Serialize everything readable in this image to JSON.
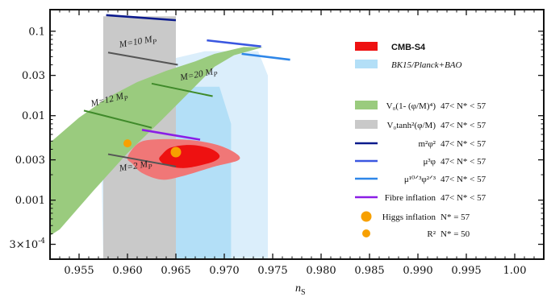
{
  "chart_data": {
    "type": "scatter",
    "xlabel": "n",
    "xlabel_sub": "S",
    "x_ticks": [
      "0.955",
      "0.960",
      "0.965",
      "0.970",
      "0.975",
      "0.980",
      "0.985",
      "0.990",
      "0.995",
      "1.00"
    ],
    "x_tick_values": [
      0.955,
      0.96,
      0.965,
      0.97,
      0.975,
      0.98,
      0.985,
      0.99,
      0.995,
      1.0
    ],
    "xlim": [
      0.952,
      1.003
    ],
    "y_scale": "log",
    "ylim": [
      0.0002,
      0.18
    ],
    "y_ticks": [
      {
        "value": 0.1,
        "label": "0.1"
      },
      {
        "value": 0.03,
        "label": "0.03"
      },
      {
        "value": 0.01,
        "label": "0.01"
      },
      {
        "value": 0.003,
        "label": "0.003"
      },
      {
        "value": 0.001,
        "label": "0.001"
      },
      {
        "value": 0.0003,
        "label": "3×10",
        "exp": "-4"
      }
    ],
    "regions": [
      {
        "name": "BK15/Planck+BAO",
        "level": "2sigma",
        "color": "#dbeefb",
        "outline": [
          [
            0.9575,
            0.0002
          ],
          [
            0.9573,
            0.003
          ],
          [
            0.958,
            0.015
          ],
          [
            0.962,
            0.04
          ],
          [
            0.968,
            0.058
          ],
          [
            0.9735,
            0.058
          ],
          [
            0.9745,
            0.03
          ],
          [
            0.9745,
            0.0002
          ]
        ]
      },
      {
        "name": "BK15/Planck+BAO",
        "level": "1sigma",
        "color": "#b3dff7",
        "outline": [
          [
            0.9612,
            0.0002
          ],
          [
            0.9608,
            0.003
          ],
          [
            0.962,
            0.012
          ],
          [
            0.9655,
            0.022
          ],
          [
            0.9695,
            0.022
          ],
          [
            0.9707,
            0.008
          ],
          [
            0.9707,
            0.0002
          ]
        ]
      },
      {
        "name": "tanh-band",
        "color": "#c9c9c9",
        "outline": [
          [
            0.9575,
            0.15
          ],
          [
            0.965,
            0.15
          ],
          [
            0.965,
            0.0002
          ],
          [
            0.9575,
            0.0002
          ]
        ]
      },
      {
        "name": "CMB-S4",
        "level": "2sigma",
        "color": "#f07777",
        "outline": [
          [
            0.96,
            0.0032
          ],
          [
            0.961,
            0.0046
          ],
          [
            0.9625,
            0.0052
          ],
          [
            0.966,
            0.0052
          ],
          [
            0.969,
            0.0046
          ],
          [
            0.971,
            0.0037
          ],
          [
            0.9715,
            0.003
          ],
          [
            0.969,
            0.0025
          ],
          [
            0.9655,
            0.0019
          ],
          [
            0.9635,
            0.00175
          ],
          [
            0.9615,
            0.0021
          ],
          [
            0.9605,
            0.0027
          ]
        ]
      },
      {
        "name": "CMB-S4",
        "level": "1sigma",
        "color": "#ee1111",
        "outline": [
          [
            0.9635,
            0.0034
          ],
          [
            0.9645,
            0.0042
          ],
          [
            0.9665,
            0.0045
          ],
          [
            0.9685,
            0.0041
          ],
          [
            0.9695,
            0.0034
          ],
          [
            0.969,
            0.0029
          ],
          [
            0.967,
            0.0025
          ],
          [
            0.9655,
            0.0024
          ],
          [
            0.964,
            0.0026
          ],
          [
            0.9633,
            0.003
          ]
        ]
      },
      {
        "name": "V0(1-(phi/M)^4)",
        "color": "#9acb7e",
        "outline": [
          [
            0.952,
            0.0048
          ],
          [
            0.955,
            0.0095
          ],
          [
            0.958,
            0.0165
          ],
          [
            0.961,
            0.025
          ],
          [
            0.964,
            0.034
          ],
          [
            0.967,
            0.044
          ],
          [
            0.969,
            0.054
          ],
          [
            0.972,
            0.065
          ],
          [
            0.974,
            0.0645
          ],
          [
            0.971,
            0.052
          ],
          [
            0.969,
            0.038
          ],
          [
            0.9665,
            0.0195
          ],
          [
            0.9635,
            0.0088
          ],
          [
            0.96,
            0.0036
          ],
          [
            0.9565,
            0.0013
          ],
          [
            0.953,
            0.00045
          ],
          [
            0.952,
            0.00038
          ]
        ]
      }
    ],
    "lines": [
      {
        "name": "m^2 phi^2",
        "color": "#0b1a8c",
        "points": [
          [
            0.9578,
            0.155
          ],
          [
            0.965,
            0.135
          ]
        ]
      },
      {
        "name": "mu^3 phi",
        "color": "#3a57e0",
        "points": [
          [
            0.9682,
            0.078
          ],
          [
            0.9738,
            0.066
          ]
        ]
      },
      {
        "name": "mu^(10/3) phi^(2/3)",
        "color": "#2e86e8",
        "points": [
          [
            0.9718,
            0.054
          ],
          [
            0.9768,
            0.046
          ]
        ]
      },
      {
        "name": "Fibre inflation",
        "color": "#8a1ee6",
        "points": [
          [
            0.9615,
            0.0068
          ],
          [
            0.9675,
            0.0052
          ]
        ]
      },
      {
        "name": "M=10 M_P",
        "color": "#555555",
        "points": [
          [
            0.958,
            0.056
          ],
          [
            0.9652,
            0.04
          ]
        ]
      },
      {
        "name": "M=20 M_P",
        "color": "#3f8a2a",
        "points": [
          [
            0.9625,
            0.024
          ],
          [
            0.9688,
            0.017
          ]
        ]
      },
      {
        "name": "M=12 M_P",
        "color": "#3f8a2a",
        "points": [
          [
            0.9555,
            0.0115
          ],
          [
            0.9625,
            0.0072
          ]
        ]
      },
      {
        "name": "M=2 M_P",
        "color": "#555555",
        "points": [
          [
            0.958,
            0.0035
          ],
          [
            0.965,
            0.0025
          ]
        ]
      }
    ],
    "points": [
      {
        "name": "Higgs inflation",
        "x": 0.965,
        "y": 0.0037,
        "color": "#f7a000",
        "size": "large"
      },
      {
        "name": "R^2",
        "x": 0.96,
        "y": 0.0047,
        "color": "#f7a000",
        "size": "small"
      }
    ],
    "annotations": [
      {
        "text": "M=10 M",
        "sub": "P",
        "x": 0.9592,
        "y": 0.064,
        "rotate": -10
      },
      {
        "text": "M=20 M",
        "sub": "P",
        "x": 0.9655,
        "y": 0.026,
        "rotate": -11
      },
      {
        "text": "M=12 M",
        "sub": "P",
        "x": 0.9563,
        "y": 0.0128,
        "rotate": -14
      },
      {
        "text": "M=2 M",
        "sub": "P",
        "x": 0.9592,
        "y": 0.0022,
        "rotate": -9
      }
    ],
    "legend": {
      "placement": "right",
      "entries": [
        {
          "kind": "box",
          "color": "#ee1111",
          "label": "CMB-S4",
          "bold": true
        },
        {
          "kind": "box",
          "color": "#b3dff7",
          "label": "BK15/Planck+BAO",
          "italic": true
        },
        {
          "kind": "box",
          "color": "#9acb7e",
          "label": "V₀(1- (φ/M)⁴)",
          "range": "47< N* < 57"
        },
        {
          "kind": "box",
          "color": "#c9c9c9",
          "label": "V₀tanh²(φ/M)",
          "range": "47< N* < 57"
        },
        {
          "kind": "line",
          "color": "#0b1a8c",
          "label": "m²φ²",
          "range": "47< N* < 57"
        },
        {
          "kind": "line",
          "color": "#3a57e0",
          "label": "μ³φ",
          "range": "47< N* < 57"
        },
        {
          "kind": "line",
          "color": "#2e86e8",
          "label": "μ¹⁰ᐟ³φ²ᐟ³",
          "range": "47< N* < 57"
        },
        {
          "kind": "line",
          "color": "#8a1ee6",
          "label": "Fibre inflation",
          "range": "47< N* < 57"
        },
        {
          "kind": "dot",
          "color": "#f7a000",
          "size": "large",
          "label": "Higgs inflation",
          "range": "N* = 57"
        },
        {
          "kind": "dot",
          "color": "#f7a000",
          "size": "small",
          "label": "R²",
          "range": "N* = 50"
        }
      ]
    }
  }
}
